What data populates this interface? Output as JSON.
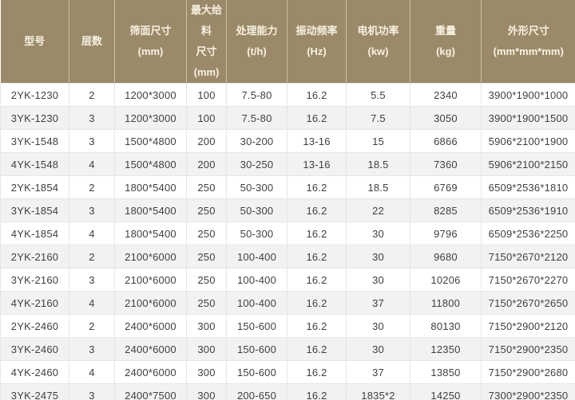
{
  "table": {
    "title_semantic": "vibrating-screen-specification-table",
    "columns": [
      {
        "key": "model",
        "lines": [
          "型号"
        ],
        "width": 86
      },
      {
        "key": "layers",
        "lines": [
          "层数"
        ],
        "width": 57
      },
      {
        "key": "screen_size",
        "lines": [
          "筛面尺寸",
          "(mm)"
        ],
        "width": 90
      },
      {
        "key": "max_feed",
        "lines": [
          "最大给料",
          "尺寸",
          "(mm)"
        ],
        "width": 50
      },
      {
        "key": "capacity",
        "lines": [
          "处理能力",
          "(t/h)"
        ],
        "width": 76
      },
      {
        "key": "frequency",
        "lines": [
          "振动频率",
          "(Hz)"
        ],
        "width": 74
      },
      {
        "key": "motor_power",
        "lines": [
          "电机功率",
          "(kw)"
        ],
        "width": 80
      },
      {
        "key": "weight",
        "lines": [
          "重量",
          "(kg)"
        ],
        "width": 89
      },
      {
        "key": "dimensions",
        "lines": [
          "外形尺寸",
          "(mm*mm*mm)"
        ],
        "width": 118
      }
    ],
    "rows": [
      [
        "2YK-1230",
        "2",
        "1200*3000",
        "100",
        "7.5-80",
        "16.2",
        "5.5",
        "2340",
        "3900*1900*1000"
      ],
      [
        "3YK-1230",
        "3",
        "1200*3000",
        "100",
        "7.5-80",
        "16.2",
        "7.5",
        "3050",
        "3900*1900*1500"
      ],
      [
        "3YK-1548",
        "3",
        "1500*4800",
        "200",
        "30-200",
        "13-16",
        "15",
        "6866",
        "5906*2100*1900"
      ],
      [
        "4YK-1548",
        "4",
        "1500*4800",
        "200",
        "30-250",
        "13-16",
        "18.5",
        "7360",
        "5906*2100*2150"
      ],
      [
        "2YK-1854",
        "2",
        "1800*5400",
        "250",
        "50-300",
        "16.2",
        "18.5",
        "6769",
        "6509*2536*1810"
      ],
      [
        "3YK-1854",
        "3",
        "1800*5400",
        "250",
        "50-300",
        "16.2",
        "22",
        "8285",
        "6509*2536*1910"
      ],
      [
        "4YK-1854",
        "4",
        "1800*5400",
        "250",
        "50-300",
        "16.2",
        "30",
        "9796",
        "6509*2536*2250"
      ],
      [
        "2YK-2160",
        "2",
        "2100*6000",
        "250",
        "100-400",
        "16.2",
        "30",
        "9680",
        "7150*2670*2120"
      ],
      [
        "3YK-2160",
        "3",
        "2100*6000",
        "250",
        "100-400",
        "16.2",
        "30",
        "10206",
        "7150*2670*2270"
      ],
      [
        "4YK-2160",
        "4",
        "2100*6000",
        "250",
        "100-400",
        "16.2",
        "37",
        "11800",
        "7150*2670*2650"
      ],
      [
        "2YK-2460",
        "2",
        "2400*6000",
        "300",
        "150-600",
        "16.2",
        "30",
        "80130",
        "7150*2900*2120"
      ],
      [
        "3YK-2460",
        "3",
        "2400*6000",
        "300",
        "150-600",
        "16.2",
        "30",
        "12350",
        "7150*2900*2350"
      ],
      [
        "4YK-2460",
        "4",
        "2400*6000",
        "300",
        "150-600",
        "16.2",
        "37",
        "13850",
        "7150*2900*2680"
      ],
      [
        "3YK-2475",
        "3",
        "2400*7500",
        "300",
        "200-650",
        "16.2",
        "1835*2",
        "14250",
        "7300*2900*2350"
      ]
    ]
  },
  "colors": {
    "header_bg": "#9b8a69",
    "header_text": "#f7f1e1",
    "header_separator": "#c9bea4",
    "body_text": "#3f3f3f",
    "grid_line": "#e6e6e6",
    "row_bg": "#ffffff",
    "row_alt_bg": "#f2f2f2"
  }
}
